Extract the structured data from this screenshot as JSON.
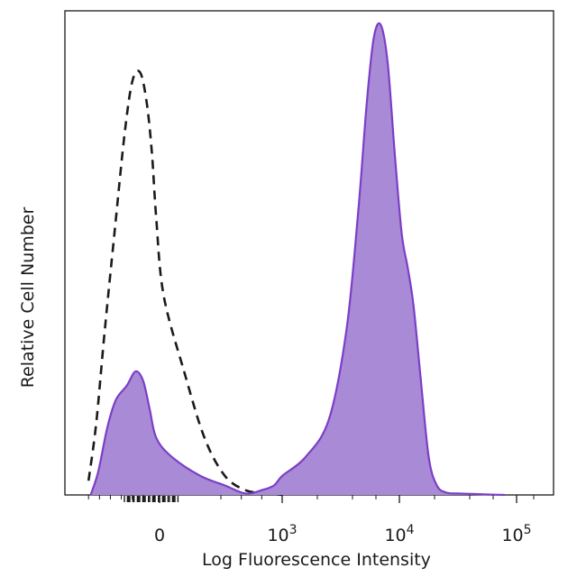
{
  "chart_data": {
    "type": "area",
    "xlabel": "Log Fluorescence Intensity",
    "ylabel": "Relative Cell Number",
    "x_scale": "biexponential",
    "xlim": [
      -8,
      5.3
    ],
    "ylim": [
      0,
      1.0
    ],
    "x_ticks": [
      {
        "base": "0",
        "exp": "",
        "value": 0
      },
      {
        "base": "10",
        "exp": "3",
        "value": 3
      },
      {
        "base": "10",
        "exp": "4",
        "value": 4
      },
      {
        "base": "10",
        "exp": "5",
        "value": 5
      }
    ],
    "grid": false,
    "legend": "none",
    "series": [
      {
        "style": "dashed-outline",
        "color": "#1a1a1a",
        "x": [
          -6.5,
          -5.8,
          -5.0,
          -4.0,
          -3.2,
          -2.5,
          -1.8,
          -1.2,
          -0.7,
          -0.3,
          0.1,
          0.6,
          1.1,
          1.6,
          2.1,
          2.5,
          2.8,
          3.0
        ],
        "y": [
          0.03,
          0.15,
          0.35,
          0.58,
          0.76,
          0.87,
          0.89,
          0.83,
          0.72,
          0.58,
          0.42,
          0.26,
          0.12,
          0.04,
          0.01,
          0.005,
          0.002,
          0.0
        ]
      },
      {
        "style": "filled",
        "color": "#7b3fc6",
        "fill": "#a98ad6",
        "x": [
          -6.3,
          -5.6,
          -4.8,
          -4.0,
          -3.0,
          -2.2,
          -1.5,
          -0.9,
          -0.3,
          0.3,
          1.0,
          1.6,
          2.1,
          2.5,
          2.8,
          3.0,
          3.2,
          3.4,
          3.55,
          3.65,
          3.72,
          3.78,
          3.84,
          3.9,
          3.96,
          4.02,
          4.07,
          4.12,
          4.18,
          4.25,
          4.32,
          4.4,
          4.5,
          4.62,
          4.75,
          4.9
        ],
        "y": [
          0.0,
          0.05,
          0.14,
          0.2,
          0.23,
          0.26,
          0.24,
          0.18,
          0.12,
          0.08,
          0.04,
          0.02,
          0.003,
          0.01,
          0.02,
          0.04,
          0.08,
          0.16,
          0.35,
          0.6,
          0.82,
          0.96,
          0.99,
          0.91,
          0.72,
          0.55,
          0.48,
          0.4,
          0.25,
          0.08,
          0.02,
          0.005,
          0.003,
          0.002,
          0.001,
          0.0
        ]
      }
    ]
  }
}
